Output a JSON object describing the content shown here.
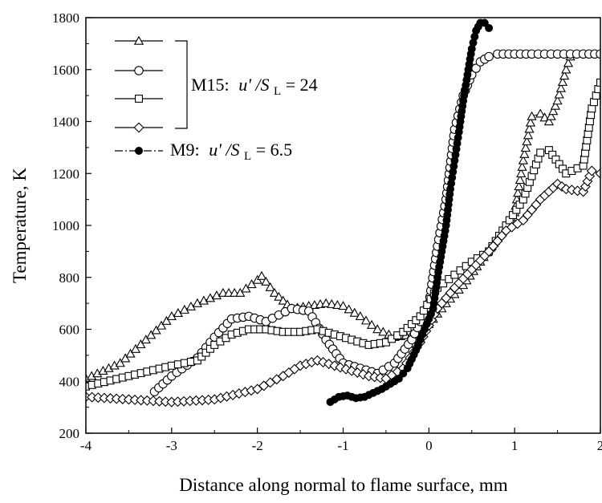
{
  "chart_data": {
    "type": "line",
    "xlabel": "Distance along normal to flame surface, mm",
    "ylabel": "Temperature, K",
    "xlim": [
      -4,
      2
    ],
    "ylim": [
      200,
      1800
    ],
    "xticks": [
      "-4",
      "-3",
      "-2",
      "-1",
      "0",
      "1",
      "2"
    ],
    "yticks": [
      "200",
      "400",
      "600",
      "800",
      "1000",
      "1200",
      "1400",
      "1600",
      "1800"
    ],
    "grid": false,
    "legend_position": "top-left",
    "legend": {
      "group_label_prefix": "M15:",
      "group_label_var": "u' /S",
      "group_label_sub": "L",
      "group_label_value": " = 24",
      "m9_label_prefix": "M9:",
      "m9_label_var": "u' /S",
      "m9_label_sub": "L",
      "m9_label_value": " = 6.5"
    },
    "series": [
      {
        "marker": "triangle",
        "group": "M15",
        "x": [
          -4.0,
          -3.6,
          -3.3,
          -3.0,
          -2.7,
          -2.4,
          -2.2,
          -2.0,
          -1.95,
          -1.8,
          -1.6,
          -1.4,
          -1.2,
          -1.0,
          -0.8,
          -0.6,
          -0.4,
          -0.2,
          0.0,
          0.2,
          0.4,
          0.6,
          0.8,
          1.0,
          1.1,
          1.2,
          1.3,
          1.4,
          1.5,
          1.6,
          1.65
        ],
        "y": [
          410,
          470,
          560,
          650,
          700,
          740,
          740,
          790,
          805,
          740,
          680,
          690,
          700,
          690,
          650,
          600,
          570,
          580,
          620,
          700,
          770,
          860,
          950,
          1050,
          1250,
          1420,
          1430,
          1400,
          1480,
          1600,
          1650
        ]
      },
      {
        "marker": "circle",
        "group": "M15",
        "x": [
          -3.2,
          -3.0,
          -2.7,
          -2.5,
          -2.3,
          -2.1,
          -1.9,
          -1.6,
          -1.4,
          -1.2,
          -1.0,
          -0.8,
          -0.6,
          -0.4,
          -0.2,
          0.0,
          0.1,
          0.2,
          0.3,
          0.4,
          0.5,
          0.6,
          0.7,
          0.8,
          1.0,
          1.2,
          1.5,
          1.8,
          2.0
        ],
        "y": [
          360,
          420,
          490,
          570,
          640,
          650,
          630,
          680,
          670,
          560,
          470,
          450,
          430,
          470,
          560,
          700,
          920,
          1100,
          1370,
          1500,
          1580,
          1630,
          1650,
          1660,
          1660,
          1660,
          1660,
          1660,
          1660
        ]
      },
      {
        "marker": "square",
        "group": "M15",
        "x": [
          -4.0,
          -3.5,
          -3.0,
          -2.7,
          -2.5,
          -2.3,
          -2.1,
          -1.9,
          -1.7,
          -1.5,
          -1.3,
          -1.1,
          -0.9,
          -0.7,
          -0.5,
          -0.3,
          -0.1,
          0.1,
          0.3,
          0.5,
          0.7,
          0.9,
          1.1,
          1.3,
          1.4,
          1.6,
          1.8,
          1.9,
          2.0
        ],
        "y": [
          380,
          420,
          460,
          480,
          540,
          580,
          600,
          600,
          590,
          590,
          600,
          580,
          560,
          540,
          550,
          590,
          650,
          760,
          810,
          860,
          900,
          1000,
          1100,
          1280,
          1290,
          1200,
          1230,
          1450,
          1550
        ]
      },
      {
        "marker": "diamond",
        "group": "M15",
        "x": [
          -4.0,
          -3.5,
          -3.0,
          -2.5,
          -2.0,
          -1.7,
          -1.5,
          -1.3,
          -1.1,
          -0.9,
          -0.7,
          -0.5,
          -0.3,
          -0.1,
          0.1,
          0.3,
          0.5,
          0.7,
          0.9,
          1.1,
          1.3,
          1.5,
          1.6,
          1.8,
          1.9,
          2.0
        ],
        "y": [
          340,
          330,
          320,
          330,
          370,
          420,
          460,
          480,
          460,
          440,
          420,
          410,
          450,
          550,
          680,
          760,
          830,
          900,
          980,
          1020,
          1100,
          1160,
          1140,
          1130,
          1210,
          1200
        ]
      },
      {
        "marker": "filled-circle",
        "group": "M9",
        "x": [
          -1.15,
          -1.05,
          -0.95,
          -0.85,
          -0.75,
          -0.65,
          -0.55,
          -0.45,
          -0.35,
          -0.25,
          -0.15,
          -0.05,
          0.05,
          0.1,
          0.15,
          0.2,
          0.25,
          0.3,
          0.35,
          0.4,
          0.45,
          0.5,
          0.55,
          0.6,
          0.65,
          0.7
        ],
        "y": [
          320,
          340,
          345,
          335,
          340,
          355,
          370,
          390,
          410,
          450,
          520,
          600,
          680,
          800,
          900,
          1000,
          1140,
          1250,
          1360,
          1480,
          1580,
          1680,
          1750,
          1780,
          1780,
          1760
        ]
      }
    ]
  }
}
